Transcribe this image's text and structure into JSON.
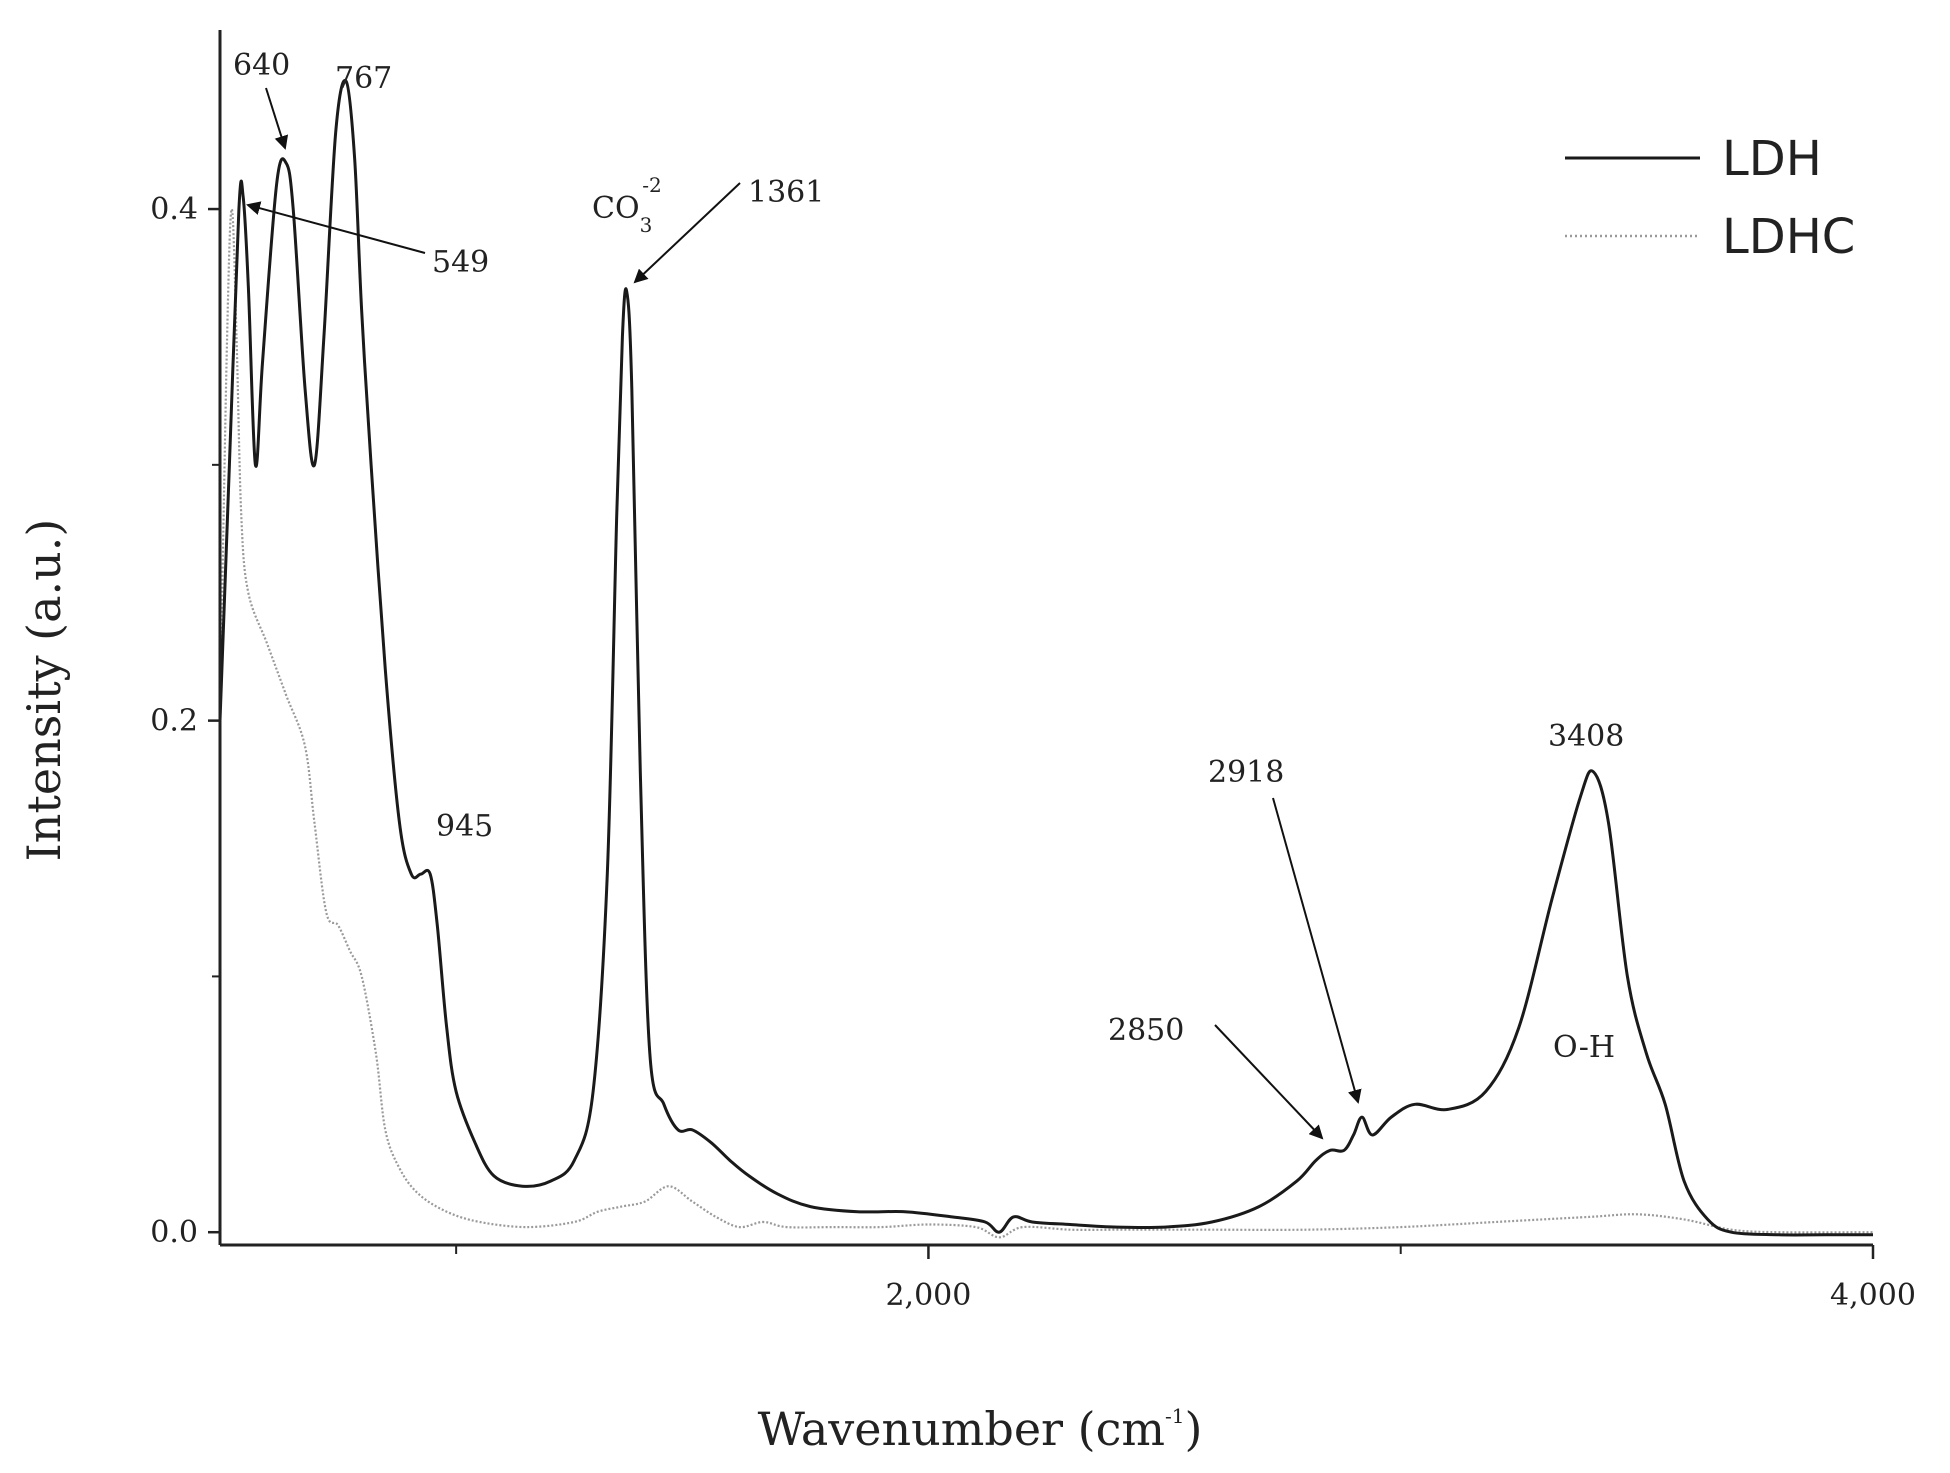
{
  "chart_data": {
    "type": "line",
    "xlabel": "Wavenumber (cm",
    "xlabel_sup": "-1",
    "xlabel_close": ")",
    "ylabel": "Intensity (a.u.)",
    "xlim": [
      500,
      4000
    ],
    "ylim": [
      -0.005,
      0.47
    ],
    "x_ticks": [
      {
        "value": 2000,
        "label": "2,000"
      },
      {
        "value": 4000,
        "label": "4,000"
      }
    ],
    "x_minor_ticks": [
      1000,
      3000
    ],
    "y_ticks": [
      {
        "value": 0.0,
        "label": "0.0"
      },
      {
        "value": 0.2,
        "label": "0.2"
      },
      {
        "value": 0.4,
        "label": "0.4"
      }
    ],
    "y_minor_ticks": [
      0.1,
      0.3
    ],
    "legend_position": "top-right",
    "series": [
      {
        "name": "LDH",
        "color": "#1a1a1a",
        "style": "solid",
        "points": [
          [
            500,
            0.2
          ],
          [
            520,
            0.3
          ],
          [
            540,
            0.4
          ],
          [
            549,
            0.405
          ],
          [
            560,
            0.37
          ],
          [
            575,
            0.3
          ],
          [
            590,
            0.34
          ],
          [
            620,
            0.41
          ],
          [
            640,
            0.418
          ],
          [
            655,
            0.4
          ],
          [
            680,
            0.33
          ],
          [
            700,
            0.3
          ],
          [
            720,
            0.35
          ],
          [
            745,
            0.43
          ],
          [
            767,
            0.45
          ],
          [
            785,
            0.42
          ],
          [
            800,
            0.36
          ],
          [
            820,
            0.3
          ],
          [
            850,
            0.22
          ],
          [
            880,
            0.16
          ],
          [
            905,
            0.14
          ],
          [
            925,
            0.14
          ],
          [
            945,
            0.14
          ],
          [
            960,
            0.12
          ],
          [
            980,
            0.08
          ],
          [
            1000,
            0.055
          ],
          [
            1040,
            0.035
          ],
          [
            1080,
            0.022
          ],
          [
            1140,
            0.018
          ],
          [
            1200,
            0.02
          ],
          [
            1250,
            0.028
          ],
          [
            1290,
            0.055
          ],
          [
            1320,
            0.14
          ],
          [
            1340,
            0.28
          ],
          [
            1352,
            0.35
          ],
          [
            1361,
            0.368
          ],
          [
            1372,
            0.33
          ],
          [
            1390,
            0.18
          ],
          [
            1410,
            0.07
          ],
          [
            1440,
            0.05
          ],
          [
            1470,
            0.04
          ],
          [
            1500,
            0.04
          ],
          [
            1540,
            0.035
          ],
          [
            1580,
            0.028
          ],
          [
            1620,
            0.022
          ],
          [
            1680,
            0.015
          ],
          [
            1750,
            0.01
          ],
          [
            1850,
            0.008
          ],
          [
            1950,
            0.008
          ],
          [
            2050,
            0.006
          ],
          [
            2120,
            0.004
          ],
          [
            2150,
            0.0
          ],
          [
            2180,
            0.006
          ],
          [
            2220,
            0.004
          ],
          [
            2300,
            0.003
          ],
          [
            2400,
            0.002
          ],
          [
            2500,
            0.002
          ],
          [
            2600,
            0.004
          ],
          [
            2700,
            0.01
          ],
          [
            2780,
            0.02
          ],
          [
            2820,
            0.028
          ],
          [
            2850,
            0.032
          ],
          [
            2880,
            0.032
          ],
          [
            2900,
            0.038
          ],
          [
            2918,
            0.045
          ],
          [
            2940,
            0.038
          ],
          [
            2980,
            0.045
          ],
          [
            3030,
            0.05
          ],
          [
            3100,
            0.048
          ],
          [
            3180,
            0.055
          ],
          [
            3250,
            0.08
          ],
          [
            3320,
            0.13
          ],
          [
            3380,
            0.17
          ],
          [
            3408,
            0.18
          ],
          [
            3440,
            0.16
          ],
          [
            3480,
            0.1
          ],
          [
            3520,
            0.07
          ],
          [
            3560,
            0.05
          ],
          [
            3600,
            0.02
          ],
          [
            3650,
            0.005
          ],
          [
            3700,
            0.0
          ],
          [
            3800,
            -0.001
          ],
          [
            3900,
            -0.001
          ],
          [
            4000,
            -0.001
          ]
        ]
      },
      {
        "name": "LDHC",
        "color": "#9a9a9a",
        "style": "dotted",
        "points": [
          [
            500,
            0.2
          ],
          [
            515,
            0.35
          ],
          [
            525,
            0.4
          ],
          [
            535,
            0.35
          ],
          [
            545,
            0.28
          ],
          [
            560,
            0.25
          ],
          [
            600,
            0.23
          ],
          [
            640,
            0.21
          ],
          [
            680,
            0.19
          ],
          [
            700,
            0.16
          ],
          [
            725,
            0.125
          ],
          [
            750,
            0.12
          ],
          [
            775,
            0.11
          ],
          [
            800,
            0.1
          ],
          [
            830,
            0.07
          ],
          [
            850,
            0.04
          ],
          [
            880,
            0.025
          ],
          [
            920,
            0.015
          ],
          [
            980,
            0.008
          ],
          [
            1050,
            0.004
          ],
          [
            1150,
            0.002
          ],
          [
            1250,
            0.004
          ],
          [
            1300,
            0.008
          ],
          [
            1350,
            0.01
          ],
          [
            1400,
            0.012
          ],
          [
            1450,
            0.018
          ],
          [
            1500,
            0.012
          ],
          [
            1550,
            0.006
          ],
          [
            1600,
            0.002
          ],
          [
            1650,
            0.004
          ],
          [
            1700,
            0.002
          ],
          [
            1800,
            0.002
          ],
          [
            1900,
            0.002
          ],
          [
            2000,
            0.003
          ],
          [
            2100,
            0.002
          ],
          [
            2150,
            -0.002
          ],
          [
            2200,
            0.002
          ],
          [
            2300,
            0.001
          ],
          [
            2400,
            0.001
          ],
          [
            2500,
            0.001
          ],
          [
            2600,
            0.001
          ],
          [
            2800,
            0.001
          ],
          [
            3000,
            0.002
          ],
          [
            3200,
            0.004
          ],
          [
            3400,
            0.006
          ],
          [
            3500,
            0.007
          ],
          [
            3600,
            0.005
          ],
          [
            3700,
            0.001
          ],
          [
            3800,
            0.0
          ],
          [
            4000,
            0.0
          ]
        ]
      }
    ],
    "annotations": [
      {
        "id": "a640",
        "label": "640"
      },
      {
        "id": "a767",
        "label": "767"
      },
      {
        "id": "a549",
        "label": "549"
      },
      {
        "id": "a1361",
        "label": "1361"
      },
      {
        "id": "aco3",
        "label": "CO",
        "sub": "3",
        "sup": "-2"
      },
      {
        "id": "a945",
        "label": "945"
      },
      {
        "id": "a2918",
        "label": "2918"
      },
      {
        "id": "a2850",
        "label": "2850"
      },
      {
        "id": "a3408",
        "label": "3408"
      },
      {
        "id": "aoh",
        "label": "O-H"
      }
    ]
  }
}
